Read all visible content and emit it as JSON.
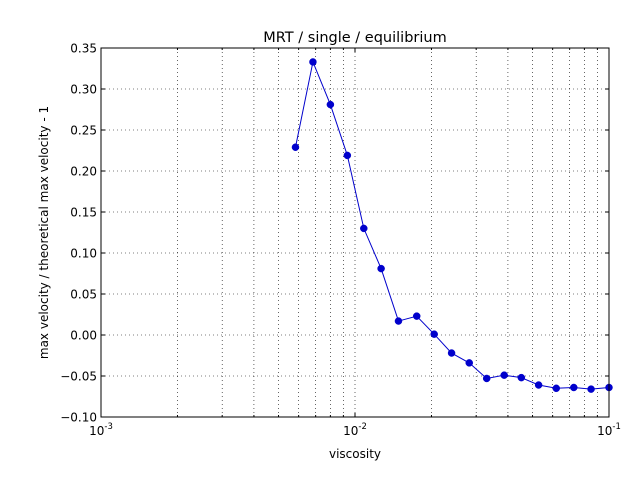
{
  "chart_data": {
    "type": "line",
    "title": "MRT / single / equilibrium",
    "xlabel": "viscosity",
    "ylabel": "max velocity / theoretical max velocity - 1",
    "x_scale": "log",
    "xlim": [
      0.001,
      0.1
    ],
    "ylim": [
      -0.1,
      0.35
    ],
    "x_ticks": [
      {
        "value": 0.001,
        "base": "10",
        "exp": "-3"
      },
      {
        "value": 0.01,
        "base": "10",
        "exp": "-2"
      },
      {
        "value": 0.1,
        "base": "10",
        "exp": "-1"
      }
    ],
    "y_ticks": [
      {
        "value": -0.1,
        "label": "−0.10"
      },
      {
        "value": -0.05,
        "label": "−0.05"
      },
      {
        "value": 0.0,
        "label": "0.00"
      },
      {
        "value": 0.05,
        "label": "0.05"
      },
      {
        "value": 0.1,
        "label": "0.10"
      },
      {
        "value": 0.15,
        "label": "0.15"
      },
      {
        "value": 0.2,
        "label": "0.20"
      },
      {
        "value": 0.25,
        "label": "0.25"
      },
      {
        "value": 0.3,
        "label": "0.30"
      },
      {
        "value": 0.35,
        "label": "0.35"
      }
    ],
    "grid": true,
    "series": [
      {
        "color": "#0000cc",
        "x": [
          0.00583,
          0.00683,
          0.008,
          0.00933,
          0.01083,
          0.01267,
          0.01483,
          0.0175,
          0.0205,
          0.024,
          0.02817,
          0.033,
          0.03867,
          0.04517,
          0.05283,
          0.062,
          0.07267,
          0.085,
          0.1
        ],
        "y": [
          0.229,
          0.333,
          0.281,
          0.219,
          0.13,
          0.081,
          0.017,
          0.023,
          0.001,
          -0.022,
          -0.034,
          -0.053,
          -0.049,
          -0.052,
          -0.061,
          -0.065,
          -0.064,
          -0.066,
          -0.064
        ]
      }
    ]
  }
}
